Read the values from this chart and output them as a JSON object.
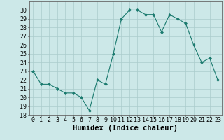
{
  "x": [
    0,
    1,
    2,
    3,
    4,
    5,
    6,
    7,
    8,
    9,
    10,
    11,
    12,
    13,
    14,
    15,
    16,
    17,
    18,
    19,
    20,
    21,
    22,
    23
  ],
  "y": [
    23,
    21.5,
    21.5,
    21,
    20.5,
    20.5,
    20,
    18.5,
    22,
    21.5,
    25,
    29,
    30,
    30,
    29.5,
    29.5,
    27.5,
    29.5,
    29,
    28.5,
    26,
    24,
    24.5,
    22
  ],
  "xlabel": "Humidex (Indice chaleur)",
  "ylim": [
    18,
    31
  ],
  "yticks": [
    18,
    19,
    20,
    21,
    22,
    23,
    24,
    25,
    26,
    27,
    28,
    29,
    30
  ],
  "xticks": [
    0,
    1,
    2,
    3,
    4,
    5,
    6,
    7,
    8,
    9,
    10,
    11,
    12,
    13,
    14,
    15,
    16,
    17,
    18,
    19,
    20,
    21,
    22,
    23
  ],
  "line_color": "#1a7a6e",
  "marker_color": "#1a7a6e",
  "bg_color": "#cce8e8",
  "grid_color": "#aacccc",
  "xlabel_fontsize": 7.5,
  "tick_fontsize": 6.0
}
